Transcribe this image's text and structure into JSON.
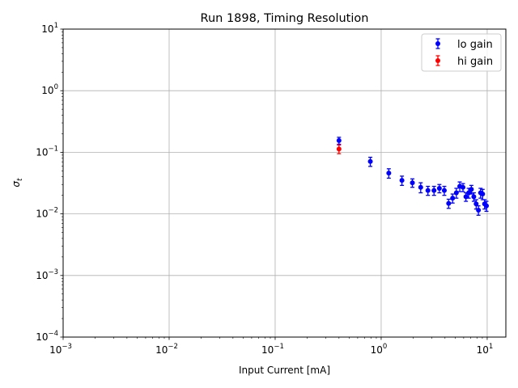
{
  "chart_data": {
    "type": "scatter",
    "title": "Run 1898, Timing Resolution",
    "xlabel": "Input Current [mA]",
    "ylabel_symbol": "σ",
    "ylabel_subscript": "t",
    "xscale": "log",
    "yscale": "log",
    "xlim": [
      0.001,
      15
    ],
    "ylim": [
      0.0001,
      10
    ],
    "grid": true,
    "legend_position": "top-right",
    "x_ticks": [
      {
        "value": 0.001,
        "base": "10",
        "exp": "−3"
      },
      {
        "value": 0.01,
        "base": "10",
        "exp": "−2"
      },
      {
        "value": 0.1,
        "base": "10",
        "exp": "−1"
      },
      {
        "value": 1,
        "base": "10",
        "exp": "0"
      },
      {
        "value": 10,
        "base": "10",
        "exp": "1"
      }
    ],
    "y_ticks": [
      {
        "value": 0.0001,
        "base": "10",
        "exp": "−4"
      },
      {
        "value": 0.001,
        "base": "10",
        "exp": "−3"
      },
      {
        "value": 0.01,
        "base": "10",
        "exp": "−2"
      },
      {
        "value": 0.1,
        "base": "10",
        "exp": "−1"
      },
      {
        "value": 1,
        "base": "10",
        "exp": "0"
      },
      {
        "value": 10,
        "base": "10",
        "exp": "1"
      }
    ],
    "series": [
      {
        "name": "lo gain",
        "color": "#0000ff",
        "points": [
          {
            "x": 0.4,
            "y": 0.155,
            "err": 0.02
          },
          {
            "x": 0.79,
            "y": 0.071,
            "err": 0.012
          },
          {
            "x": 1.18,
            "y": 0.046,
            "err": 0.008
          },
          {
            "x": 1.57,
            "y": 0.035,
            "err": 0.006
          },
          {
            "x": 1.97,
            "y": 0.032,
            "err": 0.005
          },
          {
            "x": 2.36,
            "y": 0.027,
            "err": 0.005
          },
          {
            "x": 2.76,
            "y": 0.024,
            "err": 0.004
          },
          {
            "x": 3.15,
            "y": 0.024,
            "err": 0.004
          },
          {
            "x": 3.54,
            "y": 0.026,
            "err": 0.004
          },
          {
            "x": 3.94,
            "y": 0.024,
            "err": 0.004
          },
          {
            "x": 4.33,
            "y": 0.0148,
            "err": 0.0025
          },
          {
            "x": 4.72,
            "y": 0.018,
            "err": 0.003
          },
          {
            "x": 5.12,
            "y": 0.022,
            "err": 0.004
          },
          {
            "x": 5.51,
            "y": 0.028,
            "err": 0.005
          },
          {
            "x": 5.91,
            "y": 0.027,
            "err": 0.004
          },
          {
            "x": 6.3,
            "y": 0.019,
            "err": 0.003
          },
          {
            "x": 6.69,
            "y": 0.022,
            "err": 0.004
          },
          {
            "x": 7.09,
            "y": 0.025,
            "err": 0.004
          },
          {
            "x": 7.48,
            "y": 0.019,
            "err": 0.003
          },
          {
            "x": 7.87,
            "y": 0.0145,
            "err": 0.0025
          },
          {
            "x": 8.27,
            "y": 0.0115,
            "err": 0.002
          },
          {
            "x": 8.66,
            "y": 0.022,
            "err": 0.004
          },
          {
            "x": 9.06,
            "y": 0.021,
            "err": 0.004
          },
          {
            "x": 9.45,
            "y": 0.0145,
            "err": 0.0025
          },
          {
            "x": 9.84,
            "y": 0.0135,
            "err": 0.0025
          }
        ]
      },
      {
        "name": "hi gain",
        "color": "#ff0000",
        "points": [
          {
            "x": 0.4,
            "y": 0.113,
            "err": 0.018
          }
        ]
      }
    ]
  }
}
